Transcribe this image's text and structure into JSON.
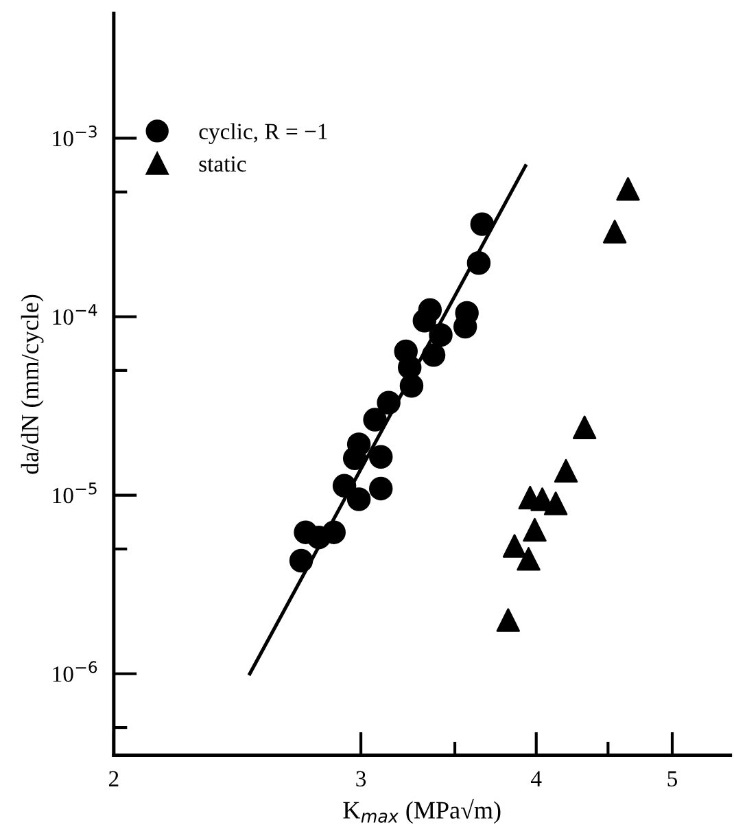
{
  "chart_data": {
    "type": "scatter",
    "xlabel": "K$_{max}$ (MPa√m)",
    "ylabel": "da/dN (mm/cycle)",
    "log": "xy",
    "legend": "top left",
    "grid": false,
    "xlim": [
      2,
      5.5
    ],
    "ylim": [
      3.5e-07,
      0.005
    ],
    "xticks": [
      2,
      3,
      4,
      5,
      {
        "value": 3.5,
        "label": null
      },
      {
        "value": 4.5,
        "label": null
      }
    ],
    "yticks": [
      {
        "value": 1e-06,
        "label": "10$^{−6}$"
      },
      {
        "value": 1e-05,
        "label": "10$^{−5}$"
      },
      {
        "value": 0.0001,
        "label": "10$^{−4}$"
      },
      {
        "value": 0.001,
        "label": "10$^{−3}$"
      },
      {
        "value": 5e-07,
        "label": null
      },
      {
        "value": 5e-06,
        "label": null
      },
      {
        "value": 5e-05,
        "label": null
      },
      {
        "value": 0.0005,
        "label": null
      }
    ],
    "series": [
      {
        "name": "cyclic, R = −1",
        "color": "#000000",
        "marker": "circle",
        "x": [
          3.66,
          3.64,
          3.36,
          3.33,
          3.57,
          3.56,
          3.42,
          3.38,
          3.23,
          3.25,
          3.26,
          3.14,
          3.07,
          2.99,
          3.1,
          2.97,
          2.92,
          2.99,
          3.1,
          2.74,
          2.87,
          2.72,
          2.8
        ],
        "values": [
          0.00033,
          0.0002,
          0.000109,
          9.5e-05,
          0.000105,
          8.8e-05,
          7.9e-05,
          6.1e-05,
          6.4e-05,
          5.2e-05,
          4.1e-05,
          3.3e-05,
          2.65e-05,
          1.93e-05,
          1.64e-05,
          1.61e-05,
          1.13e-05,
          9.5e-06,
          1.09e-05,
          6.2e-06,
          6.2e-06,
          4.3e-06,
          5.8e-06
        ]
      },
      {
        "name": "static",
        "color": "#000000",
        "marker": "triangle",
        "x": [
          3.82,
          3.86,
          3.95,
          3.99,
          3.96,
          4.04,
          4.13,
          4.2,
          4.33,
          4.55,
          4.65
        ],
        "values": [
          2e-06,
          5.2e-06,
          4.4e-06,
          6.4e-06,
          9.7e-06,
          9.5e-06,
          9e-06,
          1.37e-05,
          2.4e-05,
          0.0003,
          0.00052
        ]
      },
      {
        "type": "line",
        "color": "#000000",
        "x": [
          2.5,
          3.93
        ],
        "values": [
          1e-06,
          0.0007
        ]
      }
    ]
  }
}
